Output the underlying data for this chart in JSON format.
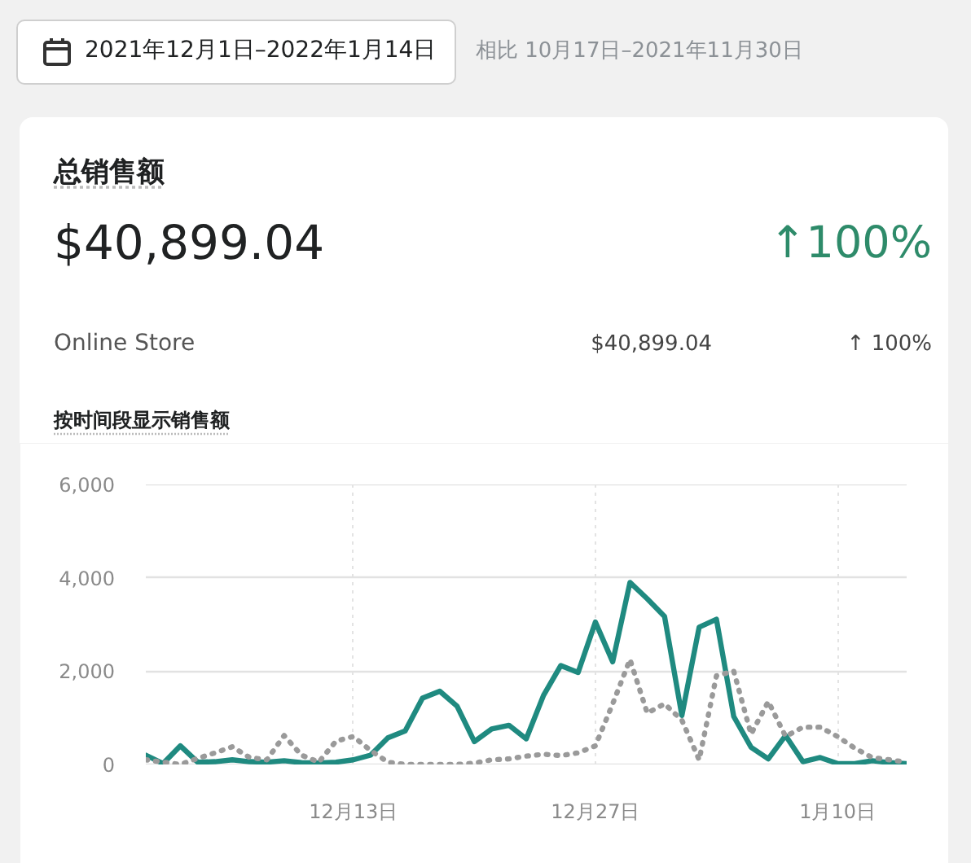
{
  "chart_data": {
    "type": "line",
    "title": "按时间段显示销售额",
    "annotations": [
      "2021年12月1日–2022年1月14日",
      "相比 10月17日–2021年11月30日",
      "总销售额",
      "$40,899.04",
      "↑100%",
      "Online Store",
      "$40,899.04",
      "↑ 100%"
    ],
    "x": [
      "2021-12-01",
      "2021-12-02",
      "2021-12-03",
      "2021-12-04",
      "2021-12-05",
      "2021-12-06",
      "2021-12-07",
      "2021-12-08",
      "2021-12-09",
      "2021-12-10",
      "2021-12-11",
      "2021-12-12",
      "2021-12-13",
      "2021-12-14",
      "2021-12-15",
      "2021-12-16",
      "2021-12-17",
      "2021-12-18",
      "2021-12-19",
      "2021-12-20",
      "2021-12-21",
      "2021-12-22",
      "2021-12-23",
      "2021-12-24",
      "2021-12-25",
      "2021-12-26",
      "2021-12-27",
      "2021-12-28",
      "2021-12-29",
      "2021-12-30",
      "2021-12-31",
      "2022-01-01",
      "2022-01-02",
      "2022-01-03",
      "2022-01-04",
      "2022-01-05",
      "2022-01-06",
      "2022-01-07",
      "2022-01-08",
      "2022-01-09",
      "2022-01-10",
      "2022-01-11",
      "2022-01-12",
      "2022-01-13",
      "2022-01-14"
    ],
    "series": [
      {
        "color": "#1f8a80",
        "line_style": "solid",
        "values": [
          200,
          20,
          400,
          50,
          60,
          100,
          60,
          50,
          80,
          40,
          30,
          50,
          100,
          200,
          570,
          720,
          1420,
          1570,
          1250,
          490,
          760,
          840,
          550,
          1480,
          2120,
          1970,
          3050,
          2200,
          3900,
          3550,
          3170,
          1050,
          2940,
          3110,
          1030,
          370,
          120,
          620,
          60,
          150,
          20,
          20,
          80,
          40,
          20
        ]
      },
      {
        "color": "#9a9a9a",
        "line_style": "dotted",
        "values": [
          100,
          50,
          0,
          130,
          250,
          380,
          150,
          100,
          620,
          200,
          50,
          500,
          600,
          300,
          50,
          0,
          0,
          0,
          0,
          30,
          100,
          120,
          180,
          220,
          190,
          250,
          400,
          1300,
          2250,
          1100,
          1300,
          950,
          100,
          1900,
          2000,
          650,
          1350,
          600,
          800,
          800,
          600,
          350,
          150,
          100,
          50
        ]
      }
    ],
    "xlim": [
      "2021-12-01",
      "2022-01-14"
    ],
    "ylim": [
      0,
      6000
    ],
    "xticks": [
      {
        "value": "2021-12-13",
        "label": "12月13日"
      },
      {
        "value": "2021-12-27",
        "label": "12月27日"
      },
      {
        "value": "2022-01-10",
        "label": "1月10日"
      }
    ],
    "yticks": [
      0,
      {
        "value": 2000,
        "label": "2,000"
      },
      {
        "value": 4000,
        "label": "4,000"
      },
      {
        "value": 6000,
        "label": "6,000"
      }
    ],
    "grid": true
  }
}
